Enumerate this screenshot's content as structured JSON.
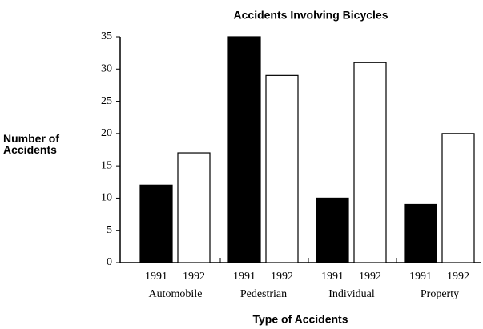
{
  "chart_data": {
    "type": "bar",
    "title": "Accidents Involving Bicycles",
    "y_label": "Number of Accidents",
    "x_label": "Type of Accidents",
    "categories": [
      "Automobile",
      "Pedestrian",
      "Individual",
      "Property"
    ],
    "series": [
      {
        "name": "1991",
        "color": "#000000",
        "values": [
          12,
          35,
          10,
          9
        ]
      },
      {
        "name": "1992",
        "color": "#ffffff",
        "values": [
          17,
          29,
          31,
          20
        ]
      }
    ],
    "ylim": [
      0,
      35
    ],
    "yticks": [
      0,
      5,
      10,
      15,
      20,
      25,
      30,
      35
    ],
    "grid": false
  }
}
